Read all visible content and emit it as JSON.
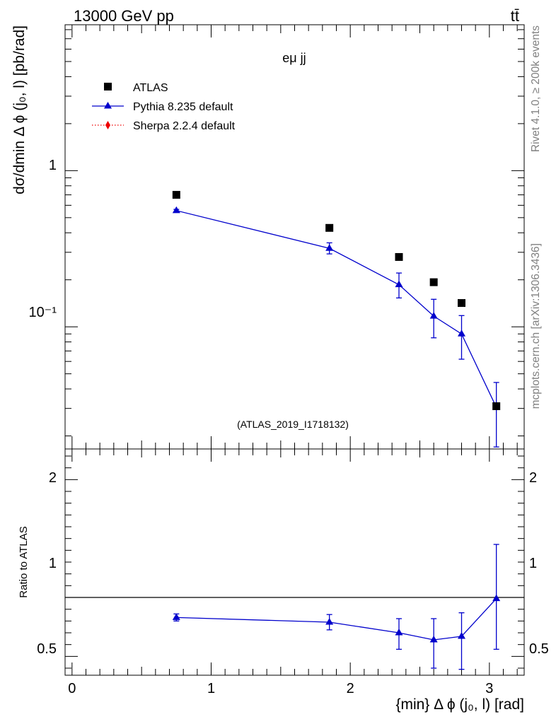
{
  "header": {
    "energy_label": "13000 GeV pp",
    "process_label": "tt̄"
  },
  "side_labels": {
    "rivet": "Rivet 4.1.0, ≥ 200k events",
    "mcplots": "mcplots.cern.ch [arXiv:1306.3436]"
  },
  "colors": {
    "atlas": "#000000",
    "pythia": "#0000cc",
    "sherpa": "#ee0000",
    "watermark": "#999999"
  },
  "chart_data": [
    {
      "panel": "main",
      "type": "scatter",
      "title": "eμ jj",
      "watermark": "(ATLAS_2019_I1718132)",
      "ylabel": "dσ/dmin Δ ϕ (j₀, l) [pb/rad]",
      "yscale": "log",
      "ylim": [
        0.0165,
        8.6
      ],
      "xlim": [
        -0.05,
        3.25
      ],
      "y_tick_labels": [
        "1",
        "10⁻¹"
      ],
      "legend_position": "top-left",
      "x": [
        0.75,
        1.85,
        2.35,
        2.6,
        2.8,
        3.05
      ],
      "series": [
        {
          "name": "ATLAS",
          "marker": "square",
          "values": [
            0.7,
            0.43,
            0.28,
            0.193,
            0.142,
            0.031
          ]
        },
        {
          "name": "Pythia 8.235 default",
          "marker": "triangle",
          "line": "solid",
          "values": [
            0.555,
            0.318,
            0.186,
            0.117,
            0.09,
            0.0305
          ],
          "err_low": [
            0.01,
            0.025,
            0.033,
            0.032,
            0.028,
            0.0135
          ],
          "err_high": [
            0.01,
            0.027,
            0.035,
            0.033,
            0.028,
            0.0135
          ]
        },
        {
          "name": "Sherpa 2.2.4 default",
          "marker": "diamond",
          "line": "dotted",
          "values": []
        }
      ]
    },
    {
      "panel": "ratio",
      "type": "line",
      "ylabel": "Ratio to ATLAS",
      "xlabel": "{min} Δ ϕ (j₀, l) [rad]",
      "ylim": [
        0.34,
        2.26
      ],
      "xlim": [
        -0.05,
        3.25
      ],
      "y_tick_labels": [
        "2",
        "1",
        "0.5"
      ],
      "x_tick_labels": [
        "0",
        "1",
        "2",
        "3"
      ],
      "reference_line": 1,
      "x": [
        0.75,
        1.85,
        2.35,
        2.6,
        2.8,
        3.05
      ],
      "series": [
        {
          "name": "Pythia 8.235 default / ATLAS",
          "values": [
            0.83,
            0.79,
            0.7,
            0.64,
            0.67,
            0.99
          ],
          "err_low": [
            0.03,
            0.065,
            0.14,
            0.24,
            0.28,
            0.43
          ],
          "err_high": [
            0.03,
            0.065,
            0.12,
            0.18,
            0.2,
            0.46
          ]
        }
      ]
    }
  ]
}
